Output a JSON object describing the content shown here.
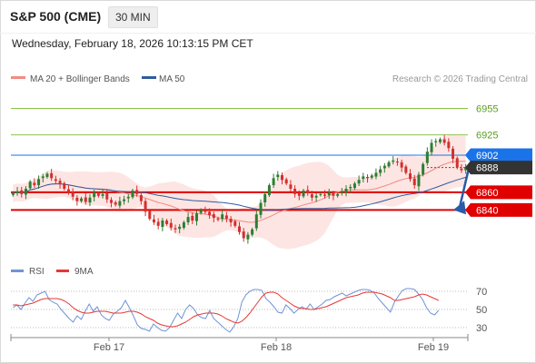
{
  "header": {
    "symbol": "S&P 500 (CME)",
    "interval": "30 MIN",
    "datetime": "Wednesday, February 18, 2026 10:13:15 PM CET"
  },
  "legend": {
    "ma20": "MA 20 + Bollinger Bands",
    "ma50": "MA 50",
    "credit": "Research © 2026 Trading Central",
    "rsi": "RSI",
    "rsi_ma": "9MA"
  },
  "colors": {
    "up": "#2e7d32",
    "down": "#d32f2f",
    "ma20": "#f28b82",
    "band_fill": "#fde2e0",
    "ma50": "#2f5c9e",
    "resistance": "#8bc34a",
    "support": "#e00000",
    "pivot": "#1a73e8",
    "price": "#333333",
    "rsi": "#6f93d6",
    "rsi_ma": "#e53935",
    "arrow": "#2a5aa8"
  },
  "chart_data": {
    "type": "candlestick",
    "x_ticks": [
      "Feb 17",
      "Feb 18",
      "Feb 19"
    ],
    "ylim": [
      6790,
      6975
    ],
    "levels": [
      {
        "value": 6955,
        "label": "6955",
        "role": "resistance"
      },
      {
        "value": 6925,
        "label": "6925",
        "role": "resistance"
      },
      {
        "value": 6902,
        "label": "6902",
        "role": "pivot"
      },
      {
        "value": 6888,
        "label": "6888",
        "role": "last"
      },
      {
        "value": 6860,
        "label": "6860",
        "role": "support"
      },
      {
        "value": 6840,
        "label": "6840",
        "role": "support"
      }
    ],
    "closes": [
      6859,
      6861,
      6858,
      6864,
      6872,
      6868,
      6875,
      6878,
      6881,
      6876,
      6873,
      6869,
      6864,
      6860,
      6855,
      6850,
      6853,
      6849,
      6854,
      6860,
      6856,
      6858,
      6852,
      6848,
      6846,
      6850,
      6852,
      6855,
      6862,
      6858,
      6850,
      6838,
      6830,
      6826,
      6822,
      6828,
      6824,
      6820,
      6818,
      6821,
      6826,
      6832,
      6828,
      6836,
      6840,
      6838,
      6834,
      6831,
      6829,
      6835,
      6830,
      6826,
      6822,
      6815,
      6808,
      6812,
      6818,
      6835,
      6848,
      6858,
      6868,
      6876,
      6880,
      6874,
      6870,
      6864,
      6858,
      6856,
      6862,
      6859,
      6854,
      6856,
      6858,
      6856,
      6860,
      6856,
      6858,
      6860,
      6864,
      6866,
      6870,
      6874,
      6878,
      6876,
      6879,
      6882,
      6886,
      6890,
      6894,
      6896,
      6894,
      6888,
      6882,
      6875,
      6868,
      6880,
      6892,
      6906,
      6916,
      6918,
      6920,
      6916,
      6910,
      6898,
      6888,
      6885,
      6888
    ],
    "rsi": {
      "ylim": [
        20,
        80
      ],
      "levels": [
        70,
        50,
        30
      ],
      "rsi_values": [
        52,
        55,
        50,
        57,
        63,
        59,
        66,
        68,
        70,
        61,
        58,
        56,
        50,
        45,
        40,
        36,
        43,
        39,
        48,
        56,
        48,
        53,
        44,
        40,
        38,
        45,
        48,
        52,
        60,
        52,
        43,
        33,
        29,
        28,
        26,
        34,
        30,
        27,
        26,
        30,
        38,
        46,
        40,
        50,
        55,
        51,
        44,
        41,
        40,
        49,
        40,
        36,
        32,
        28,
        25,
        31,
        40,
        58,
        66,
        70,
        72,
        72,
        71,
        62,
        58,
        53,
        47,
        46,
        55,
        51,
        46,
        50,
        53,
        50,
        56,
        50,
        53,
        56,
        60,
        61,
        64,
        66,
        68,
        65,
        67,
        69,
        71,
        72,
        72,
        71,
        68,
        62,
        57,
        52,
        47,
        58,
        65,
        71,
        73,
        73,
        72,
        67,
        61,
        52,
        46,
        44,
        49
      ],
      "ma_values": [
        55,
        55,
        54,
        55,
        56,
        57,
        59,
        61,
        62,
        62,
        62,
        62,
        61,
        59,
        56,
        52,
        49,
        47,
        46,
        46,
        47,
        48,
        48,
        48,
        47,
        46,
        46,
        46,
        47,
        48,
        48,
        47,
        45,
        42,
        40,
        38,
        35,
        33,
        32,
        31,
        31,
        32,
        34,
        36,
        39,
        42,
        44,
        45,
        46,
        46,
        46,
        45,
        43,
        40,
        38,
        36,
        35,
        37,
        41,
        46,
        52,
        58,
        64,
        68,
        69,
        69,
        67,
        63,
        60,
        57,
        54,
        52,
        51,
        51,
        50,
        50,
        51,
        52,
        53,
        55,
        57,
        59,
        61,
        63,
        64,
        65,
        66,
        68,
        69,
        69,
        69,
        68,
        67,
        65,
        63,
        60,
        60,
        61,
        62,
        63,
        64,
        66,
        67,
        66,
        64,
        62,
        60
      ]
    }
  }
}
